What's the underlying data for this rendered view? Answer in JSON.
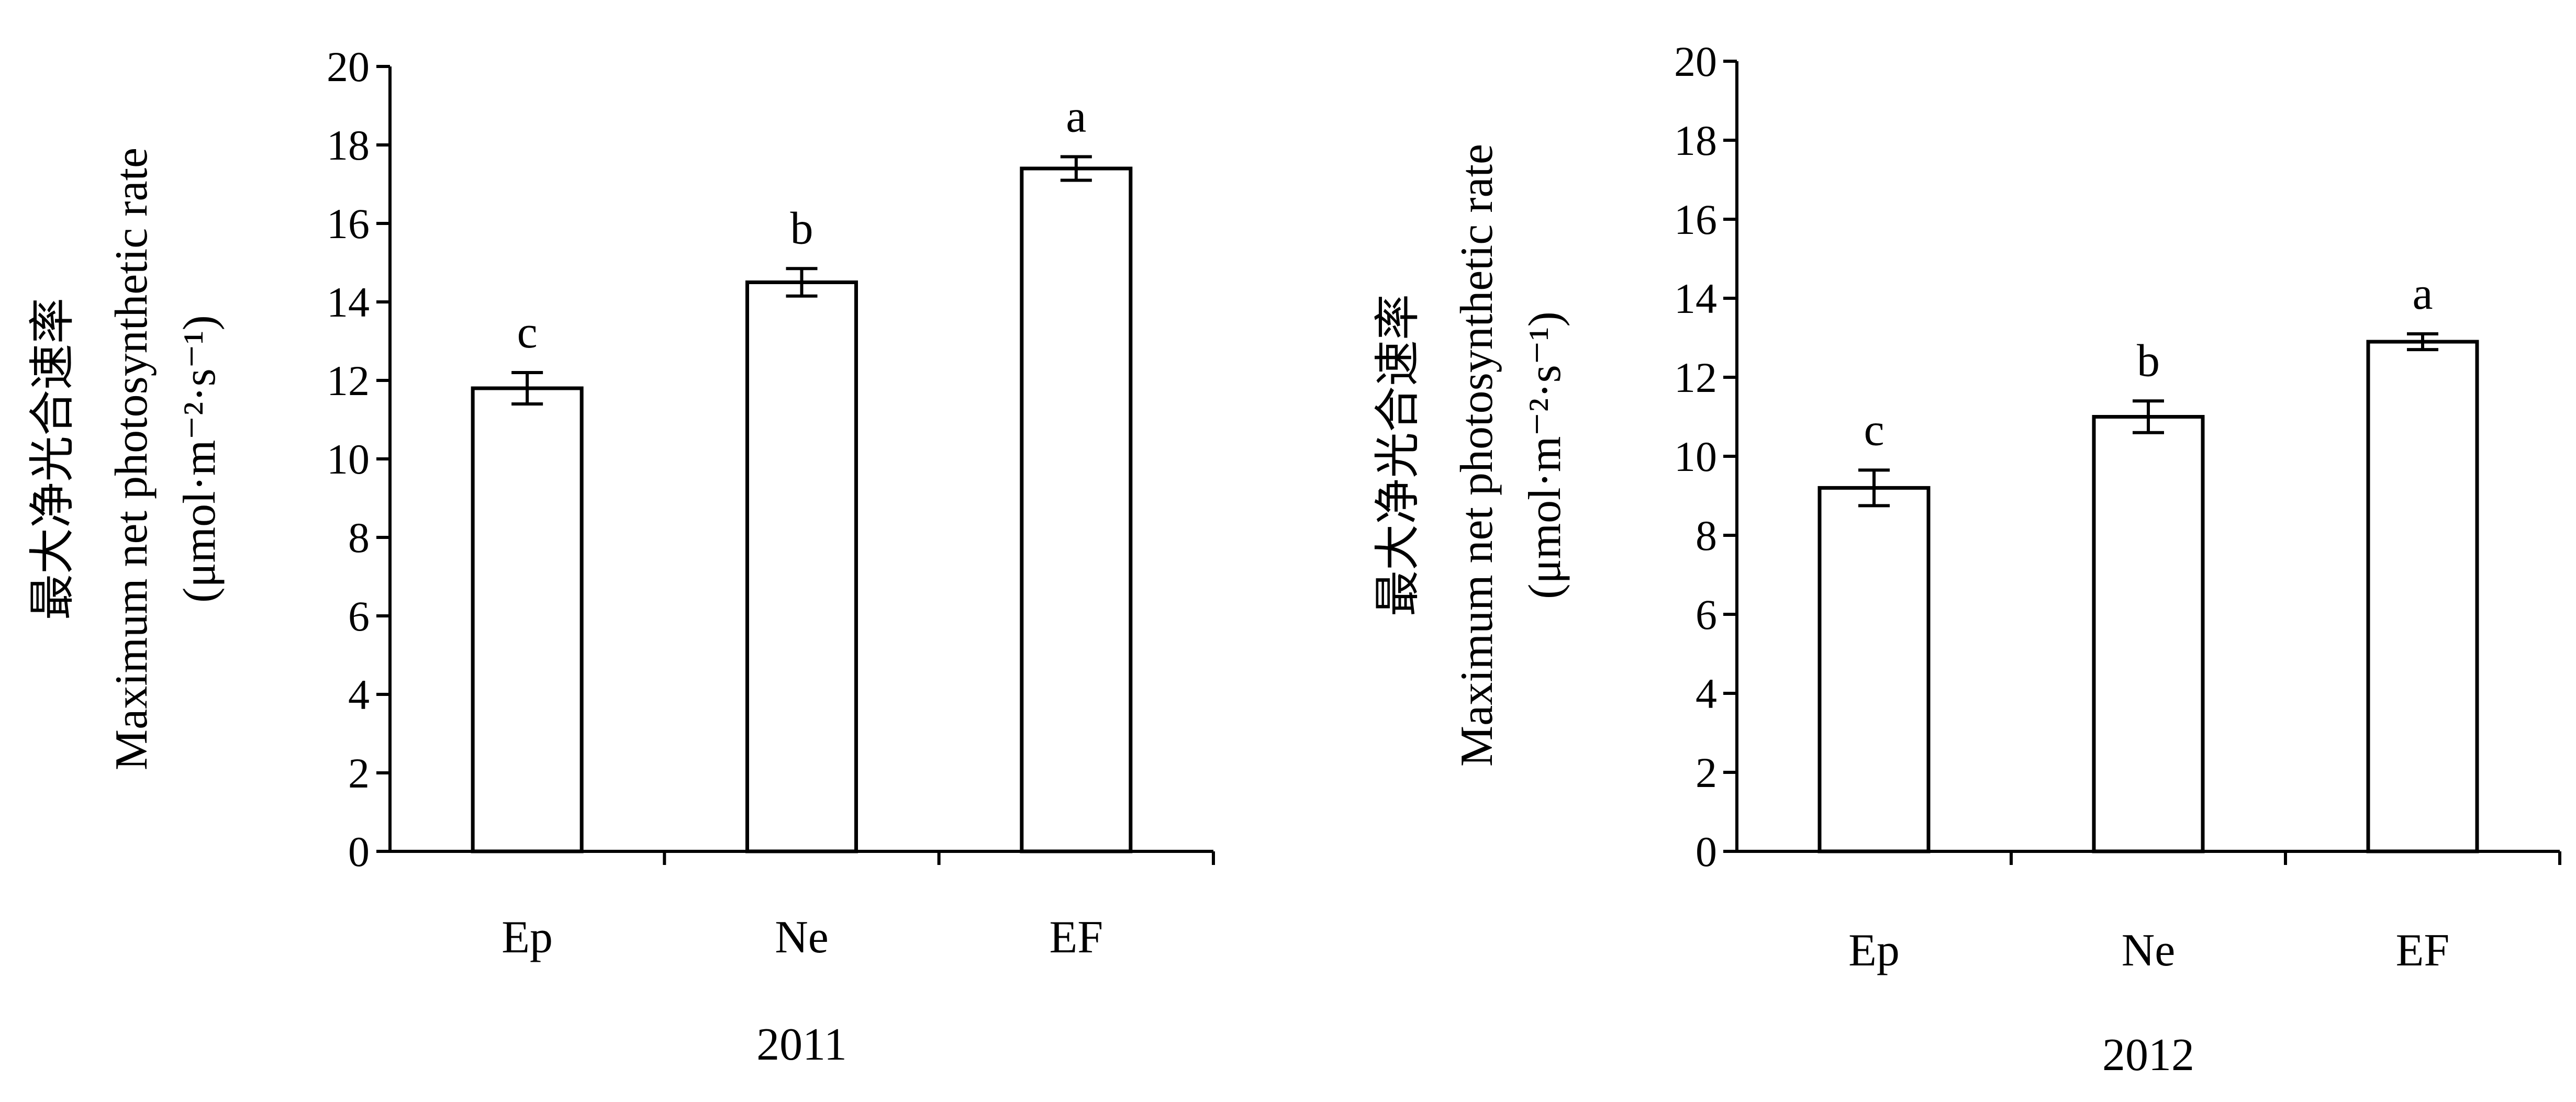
{
  "chart_data": [
    {
      "type": "bar",
      "categories": [
        "Ep",
        "Ne",
        "EF"
      ],
      "values": [
        11.8,
        14.5,
        17.4
      ],
      "errors": [
        0.4,
        0.35,
        0.3
      ],
      "significance": [
        "c",
        "b",
        "a"
      ],
      "xlabel": "2011",
      "ylabel_cn": "最大净光合速率",
      "ylabel_en": "Maximum net photosynthetic rate",
      "ylabel_unit": "(μmol·m⁻²·s⁻¹)",
      "ylim": [
        0,
        20
      ],
      "yticks": [
        "0",
        "2",
        "4",
        "6",
        "8",
        "10",
        "12",
        "14",
        "16",
        "18",
        "20"
      ],
      "grid": false,
      "legend": "none"
    },
    {
      "type": "bar",
      "categories": [
        "Ep",
        "Ne",
        "EF"
      ],
      "values": [
        9.2,
        11.0,
        12.9
      ],
      "errors": [
        0.45,
        0.4,
        0.2
      ],
      "significance": [
        "c",
        "b",
        "a"
      ],
      "xlabel": "2012",
      "ylabel_cn": "最大净光合速率",
      "ylabel_en": "Maximum net photosynthetic rate",
      "ylabel_unit": "(μmol·m⁻²·s⁻¹)",
      "ylim": [
        0,
        20
      ],
      "yticks": [
        "0",
        "2",
        "4",
        "6",
        "8",
        "10",
        "12",
        "14",
        "16",
        "18",
        "20"
      ],
      "grid": false,
      "legend": "none"
    }
  ]
}
